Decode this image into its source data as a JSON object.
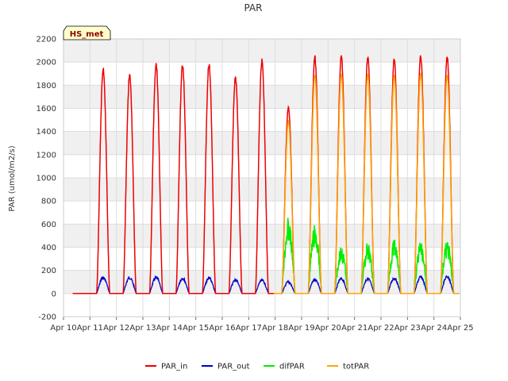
{
  "chart_data": {
    "type": "line",
    "title": "PAR",
    "xlabel": "",
    "ylabel": "PAR (umol/m2/s)",
    "badge": "HS_met",
    "ylim": [
      -200,
      2200
    ],
    "yticks": [
      -200,
      0,
      200,
      400,
      600,
      800,
      1000,
      1200,
      1400,
      1600,
      1800,
      2000,
      2200
    ],
    "ytick_labels": [
      "-200",
      "0",
      "200",
      "400",
      "600",
      "800",
      "1000",
      "1200",
      "1400",
      "1600",
      "1800",
      "2000",
      "2200"
    ],
    "xlim": [
      10,
      25
    ],
    "xticks": [
      10,
      11,
      12,
      13,
      14,
      15,
      16,
      17,
      18,
      19,
      20,
      21,
      22,
      23,
      24,
      25
    ],
    "xtick_labels": [
      "Apr 10",
      "Apr 11",
      "Apr 12",
      "Apr 13",
      "Apr 14",
      "Apr 15",
      "Apr 16",
      "Apr 17",
      "Apr 18",
      "Apr 19",
      "Apr 20",
      "Apr 21",
      "Apr 22",
      "Apr 23",
      "Apr 24",
      "Apr 25"
    ],
    "series": [
      {
        "name": "PAR_in",
        "color": "#ee0000",
        "daily_peaks": [
          {
            "day": 11,
            "peak": 1950
          },
          {
            "day": 12,
            "peak": 1900
          },
          {
            "day": 13,
            "peak": 2000
          },
          {
            "day": 14,
            "peak": 1990
          },
          {
            "day": 15,
            "peak": 2000
          },
          {
            "day": 16,
            "peak": 1880
          },
          {
            "day": 17,
            "peak": 2030
          },
          {
            "day": 18,
            "peak": 1630
          },
          {
            "day": 19,
            "peak": 2060
          },
          {
            "day": 20,
            "peak": 2070
          },
          {
            "day": 21,
            "peak": 2060
          },
          {
            "day": 22,
            "peak": 2040
          },
          {
            "day": 23,
            "peak": 2070
          },
          {
            "day": 24,
            "peak": 2060
          }
        ]
      },
      {
        "name": "PAR_out",
        "color": "#0000cc",
        "daily_peaks": [
          {
            "day": 11,
            "peak": 150
          },
          {
            "day": 12,
            "peak": 150
          },
          {
            "day": 13,
            "peak": 150
          },
          {
            "day": 14,
            "peak": 145
          },
          {
            "day": 15,
            "peak": 145
          },
          {
            "day": 16,
            "peak": 130
          },
          {
            "day": 17,
            "peak": 125
          },
          {
            "day": 18,
            "peak": 110
          },
          {
            "day": 19,
            "peak": 135
          },
          {
            "day": 20,
            "peak": 140
          },
          {
            "day": 21,
            "peak": 140
          },
          {
            "day": 22,
            "peak": 145
          },
          {
            "day": 23,
            "peak": 155
          },
          {
            "day": 24,
            "peak": 160
          }
        ]
      },
      {
        "name": "difPAR",
        "color": "#00ee00",
        "daily_peaks": [
          {
            "day": 18,
            "peak": 660
          },
          {
            "day": 19,
            "peak": 600
          },
          {
            "day": 20,
            "peak": 420
          },
          {
            "day": 21,
            "peak": 440
          },
          {
            "day": 22,
            "peak": 470
          },
          {
            "day": 23,
            "peak": 450
          },
          {
            "day": 24,
            "peak": 460
          }
        ]
      },
      {
        "name": "totPAR",
        "color": "#ffa500",
        "daily_peaks": [
          {
            "day": 18,
            "peak": 1490
          },
          {
            "day": 19,
            "peak": 1880
          },
          {
            "day": 20,
            "peak": 1890
          },
          {
            "day": 21,
            "peak": 1890
          },
          {
            "day": 22,
            "peak": 1880
          },
          {
            "day": 23,
            "peak": 1900
          },
          {
            "day": 24,
            "peak": 1880
          }
        ]
      }
    ],
    "legend": [
      "PAR_in",
      "PAR_out",
      "difPAR",
      "totPAR"
    ],
    "legend_position": "bottom-center",
    "grid": true
  }
}
